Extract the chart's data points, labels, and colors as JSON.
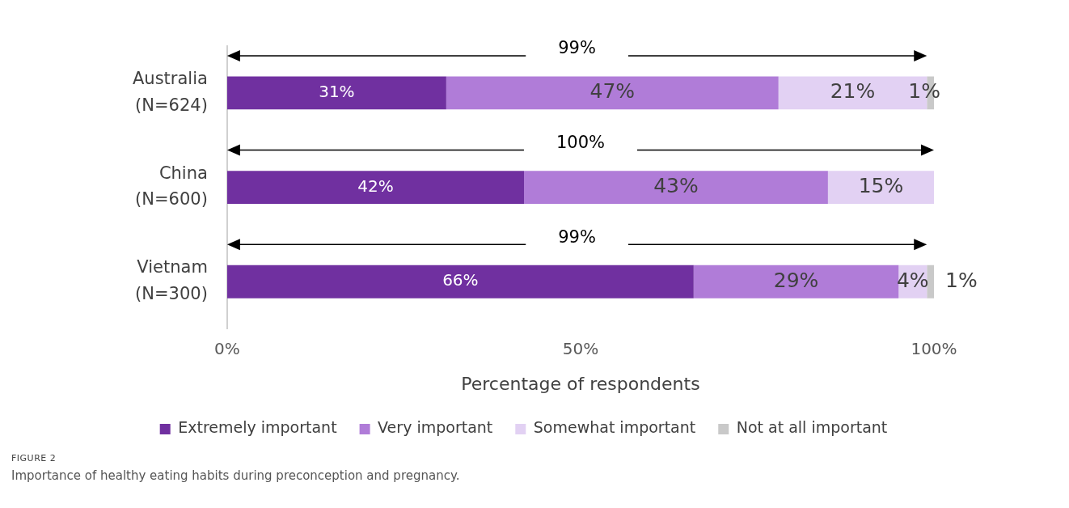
{
  "chart_data": {
    "type": "bar",
    "orientation": "horizontal",
    "stacked": true,
    "categories": [
      "Australia (N=624)",
      "China (N=600)",
      "Vietnam (N=300)"
    ],
    "series": [
      {
        "name": "Extremely important",
        "color": "#7030a0",
        "values": [
          31,
          42,
          66
        ],
        "value_labels": [
          "31%",
          "42%",
          "66%"
        ]
      },
      {
        "name": "Very important",
        "color": "#b07cd8",
        "values": [
          47,
          43,
          29
        ],
        "value_labels": [
          "47%",
          "43%",
          "29%"
        ]
      },
      {
        "name": "Somewhat important",
        "color": "#e2d1f3",
        "values": [
          21,
          15,
          4
        ],
        "value_labels": [
          "21%",
          "15%",
          "4%"
        ]
      },
      {
        "name": "Not at all important",
        "color": "#c9c9c9",
        "values": [
          1,
          0,
          1
        ],
        "value_labels": [
          "1%",
          null,
          "1%"
        ]
      }
    ],
    "xlim": [
      0,
      100
    ],
    "xticks": [
      {
        "value": 0,
        "label": "0%"
      },
      {
        "value": 50,
        "label": "50%"
      },
      {
        "value": 100,
        "label": "100%"
      }
    ],
    "xlabel": "Percentage of respondents",
    "grid": false,
    "legend": "bottom",
    "annotations": [
      "99%",
      "100%",
      "99%",
      "FIGURE 2",
      "Importance of healthy eating habits during preconception and pregnancy."
    ]
  }
}
